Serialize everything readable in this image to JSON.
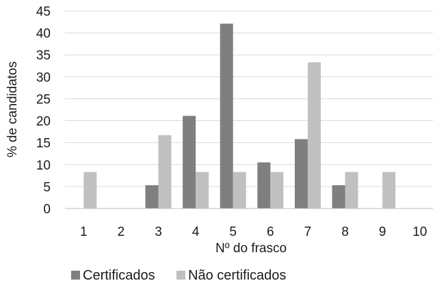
{
  "chart_data": {
    "type": "bar",
    "title": "",
    "xlabel": "Nº do frasco",
    "ylabel": "% de candidatos",
    "categories": [
      "1",
      "2",
      "3",
      "4",
      "5",
      "6",
      "7",
      "8",
      "9",
      "10"
    ],
    "ylim": [
      0,
      45
    ],
    "yticks": [
      "0",
      "5",
      "10",
      "15",
      "20",
      "25",
      "30",
      "35",
      "40",
      "45"
    ],
    "grid": true,
    "legend_position": "bottom",
    "series": [
      {
        "name": "Certificados",
        "color": "#7f7f7f",
        "values": [
          0,
          0,
          5.3,
          21.1,
          42.1,
          10.5,
          15.8,
          5.3,
          0,
          0
        ]
      },
      {
        "name": "Não certificados",
        "color": "#c0c0c0",
        "values": [
          8.3,
          0,
          16.7,
          8.3,
          8.3,
          8.3,
          33.3,
          8.3,
          8.3,
          0
        ]
      }
    ]
  }
}
